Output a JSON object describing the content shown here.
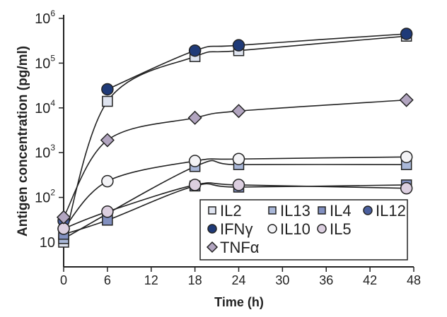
{
  "chart_data": {
    "type": "line",
    "title": "",
    "xlabel": "Time (h)",
    "ylabel": "Antigen concentration (pg/ml)",
    "xlim": [
      0,
      48
    ],
    "ylim_log10": [
      0.45,
      6
    ],
    "y_scale": "log",
    "xticks": [
      "0",
      "6",
      "12",
      "18",
      "24",
      "30",
      "36",
      "42",
      "48"
    ],
    "yticks": [
      {
        "base": "10",
        "exp": ""
      },
      {
        "base": "10",
        "exp": "2"
      },
      {
        "base": "10",
        "exp": "3"
      },
      {
        "base": "10",
        "exp": "4"
      },
      {
        "base": "10",
        "exp": "5"
      },
      {
        "base": "10",
        "exp": "6"
      }
    ],
    "legend_position": "bottom-right",
    "series": [
      {
        "name": "IL2",
        "marker": "square",
        "color": "#dfe4f0",
        "x": [
          0,
          6,
          18,
          24,
          47
        ],
        "values": [
          10,
          14000,
          140000,
          190000,
          400000
        ]
      },
      {
        "name": "IL13",
        "marker": "square",
        "color": "#a9b7d8",
        "x": [
          0,
          18,
          24,
          47
        ],
        "values": [
          12,
          490,
          540,
          540
        ]
      },
      {
        "name": "IL4",
        "marker": "square",
        "color": "#8290c0",
        "x": [
          0,
          6,
          18,
          24,
          47
        ],
        "values": [
          15,
          31,
          180,
          170,
          190
        ]
      },
      {
        "name": "IL12",
        "marker": "circle",
        "color": "#4a5f9e",
        "x": [
          0
        ],
        "values": [
          30
        ]
      },
      {
        "name": "IFNγ",
        "marker": "circle",
        "color": "#1f3a78",
        "x": [
          6,
          18,
          24,
          47
        ],
        "values": [
          26000,
          190000,
          250000,
          450000
        ]
      },
      {
        "name": "IL10",
        "marker": "circle",
        "color": "#f3f3f6",
        "x": [
          0,
          6,
          18,
          24,
          47
        ],
        "values": [
          20,
          230,
          650,
          720,
          800
        ]
      },
      {
        "name": "IL5",
        "marker": "circle",
        "color": "#dccfe0",
        "x": [
          0,
          6,
          18,
          24,
          47
        ],
        "values": [
          20,
          48,
          190,
          190,
          160
        ]
      },
      {
        "name": "TNFα",
        "marker": "diamond",
        "color": "#b2a5c0",
        "x": [
          0,
          6,
          18,
          24,
          47
        ],
        "values": [
          36,
          1900,
          6000,
          8500,
          15000
        ]
      }
    ]
  }
}
